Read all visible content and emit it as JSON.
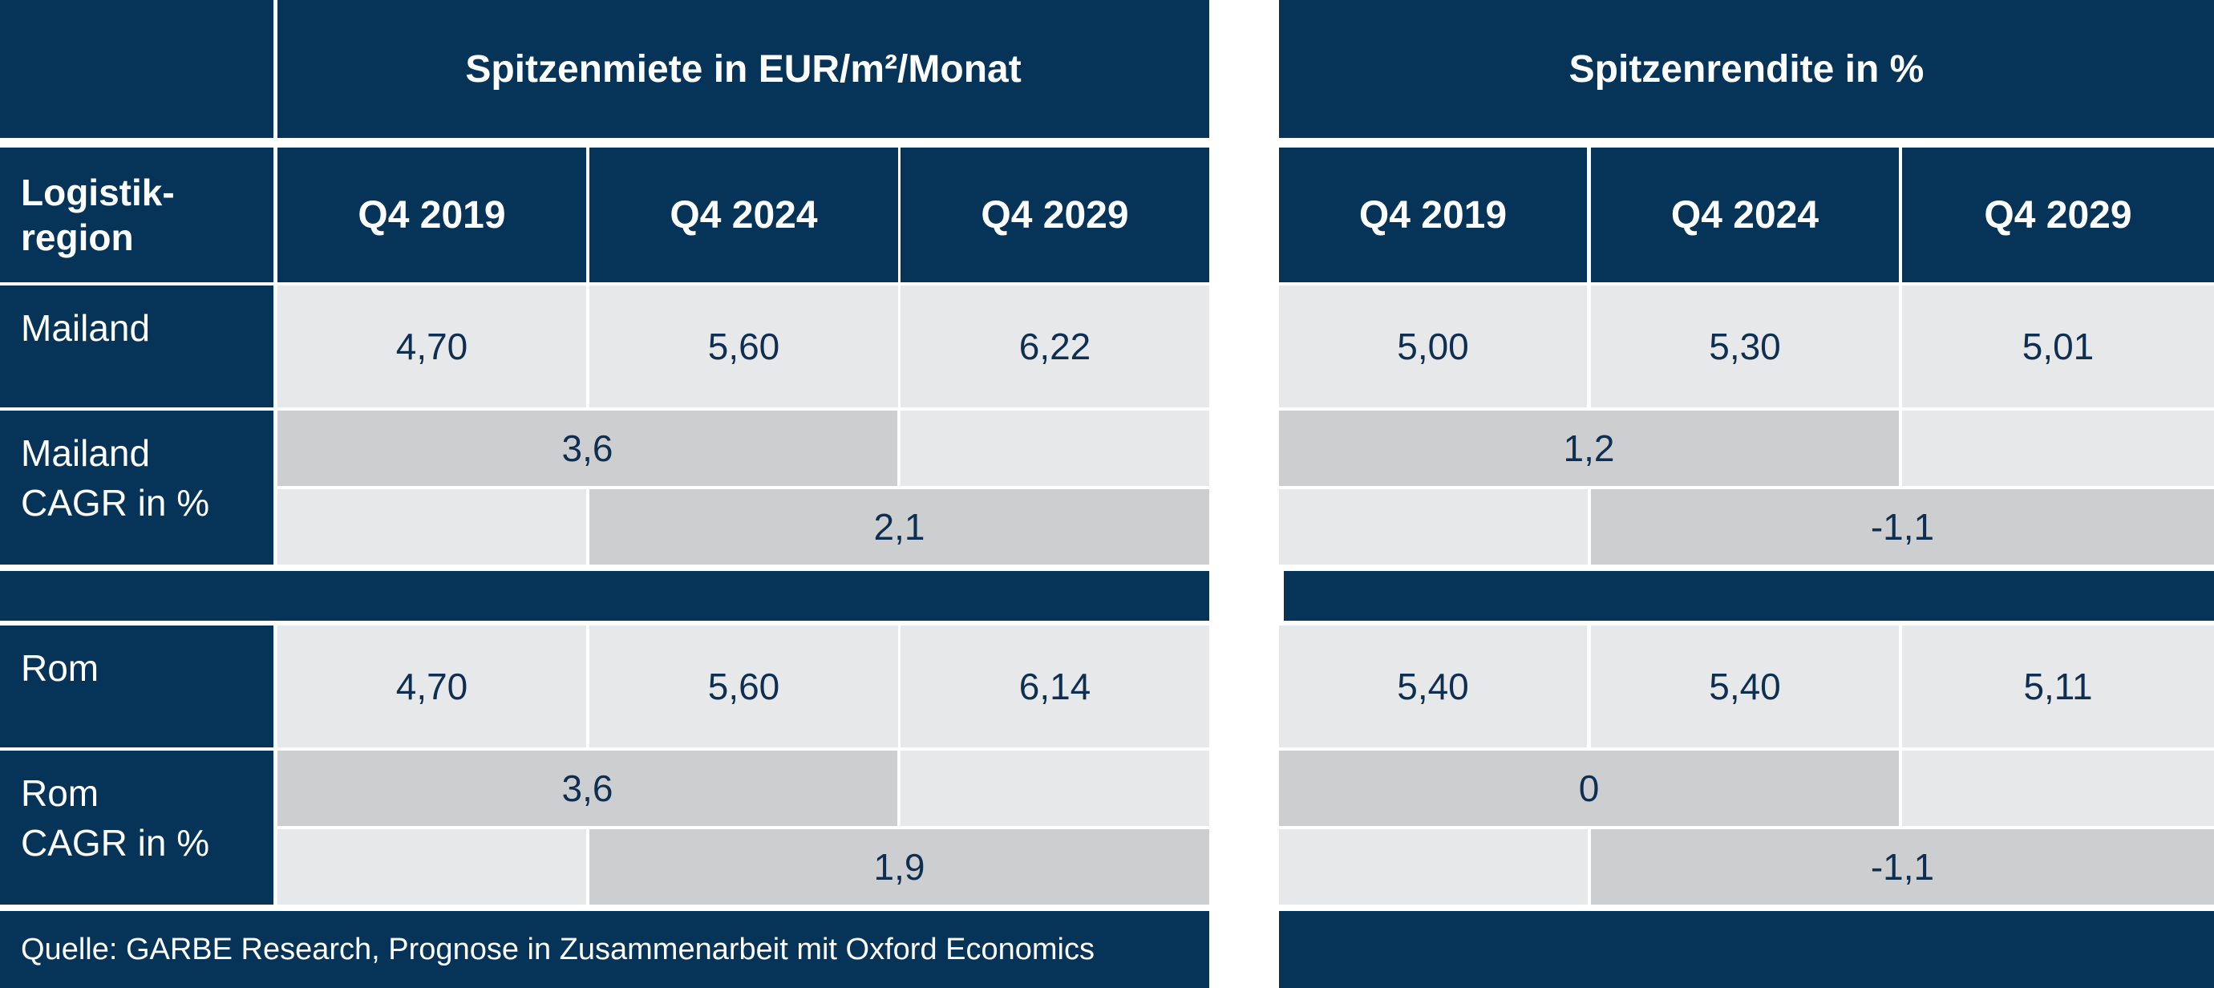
{
  "chart_data": {
    "type": "table",
    "rent_header": "Spitzenmiete in EUR/m²/Monat",
    "yield_header": "Spitzenrendite in %",
    "region_header": "Logistik-\nregion",
    "periods": [
      "Q4 2019",
      "Q4 2024",
      "Q4 2029"
    ],
    "blocks": [
      {
        "region": "Mailand",
        "cagr_label": "Mailand\nCAGR in %",
        "rent": [
          "4,70",
          "5,60",
          "6,22"
        ],
        "yield": [
          "5,00",
          "5,30",
          "5,01"
        ],
        "rent_cagr": [
          "3,6",
          "2,1"
        ],
        "yield_cagr": [
          "1,2",
          "-1,1"
        ]
      },
      {
        "region": "Rom",
        "cagr_label": "Rom\nCAGR in %",
        "rent": [
          "4,70",
          "5,60",
          "6,14"
        ],
        "yield": [
          "5,40",
          "5,40",
          "5,11"
        ],
        "rent_cagr": [
          "3,6",
          "1,9"
        ],
        "yield_cagr": [
          "0",
          "-1,1"
        ]
      }
    ],
    "source": "Quelle: GARBE Research, Prognose in Zusammenarbeit mit Oxford Economics"
  },
  "colors": {
    "header": "#063458",
    "value_cell": "#e7e8ea",
    "span_cell": "#cdced0",
    "text": "#0e2e52"
  }
}
